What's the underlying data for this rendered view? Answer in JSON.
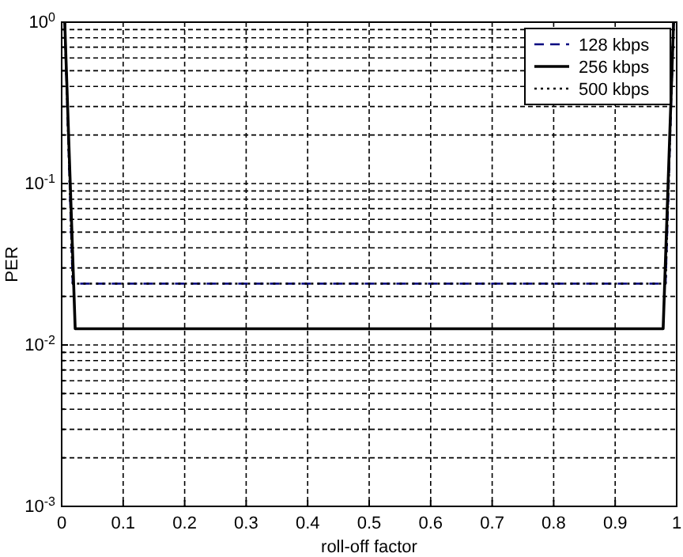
{
  "chart_data": {
    "type": "line",
    "xlabel": "roll-off factor",
    "ylabel": "PER",
    "log": "y",
    "grid": true,
    "legend": "top right",
    "xlim": [
      0,
      1
    ],
    "xticks": [
      0,
      0.1,
      0.2,
      0.3,
      0.4,
      0.5,
      0.6,
      0.7,
      0.8,
      0.9,
      1
    ],
    "ylim": [
      0.001,
      1
    ],
    "yticks": [
      {
        "value": 0.001,
        "label": "10$^{-3}$"
      },
      {
        "value": 0.002,
        "label": null
      },
      {
        "value": 0.003,
        "label": null
      },
      {
        "value": 0.004,
        "label": null
      },
      {
        "value": 0.005,
        "label": null
      },
      {
        "value": 0.006,
        "label": null
      },
      {
        "value": 0.007,
        "label": null
      },
      {
        "value": 0.008,
        "label": null
      },
      {
        "value": 0.009,
        "label": null
      },
      {
        "value": 0.01,
        "label": "10$^{-2}$"
      },
      {
        "value": 0.02,
        "label": null
      },
      {
        "value": 0.03,
        "label": null
      },
      {
        "value": 0.04,
        "label": null
      },
      {
        "value": 0.05,
        "label": null
      },
      {
        "value": 0.06,
        "label": null
      },
      {
        "value": 0.07,
        "label": null
      },
      {
        "value": 0.08,
        "label": null
      },
      {
        "value": 0.09,
        "label": null
      },
      {
        "value": 0.1,
        "label": "10$^{-1}$"
      },
      {
        "value": 0.2,
        "label": null
      },
      {
        "value": 0.3,
        "label": null
      },
      {
        "value": 0.4,
        "label": null
      },
      {
        "value": 0.5,
        "label": null
      },
      {
        "value": 0.6,
        "label": null
      },
      {
        "value": 0.7,
        "label": null
      },
      {
        "value": 0.8,
        "label": null
      },
      {
        "value": 0.9,
        "label": null
      },
      {
        "value": 1,
        "label": "10$^{0}$"
      }
    ],
    "series": [
      {
        "name": "128 kbps",
        "color": "#00007f",
        "line_style": "dashed",
        "x": [
          0.005,
          0.018,
          0.982,
          0.995
        ],
        "values": [
          1,
          0.024,
          0.024,
          1
        ]
      },
      {
        "name": "256 kbps",
        "color": "#000000",
        "line_style": "solid",
        "x": [
          0.005,
          0.022,
          0.978,
          0.995
        ],
        "values": [
          1,
          0.0126,
          0.0126,
          1
        ]
      },
      {
        "name": "500 kbps",
        "color": "#000000",
        "line_style": "dotted",
        "x": [
          0.005,
          0.018,
          0.982,
          0.995
        ],
        "values": [
          1,
          0.024,
          0.024,
          1
        ]
      }
    ]
  }
}
